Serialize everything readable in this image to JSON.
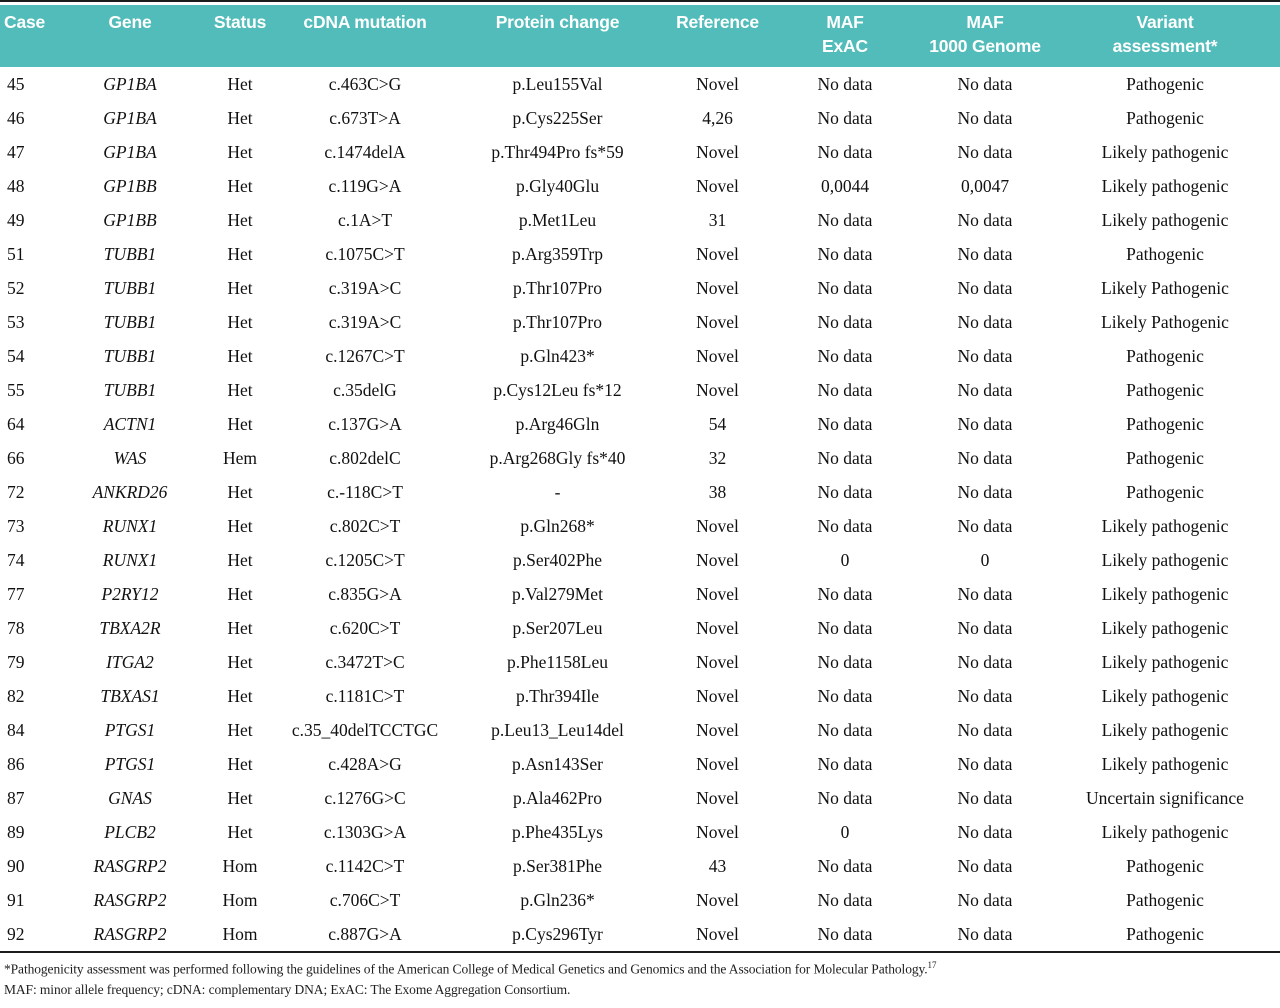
{
  "header_cols": [
    {
      "l1": "Case",
      "l2": ""
    },
    {
      "l1": "Gene",
      "l2": ""
    },
    {
      "l1": "Status",
      "l2": ""
    },
    {
      "l1": "cDNA mutation",
      "l2": ""
    },
    {
      "l1": "Protein change",
      "l2": ""
    },
    {
      "l1": "Reference",
      "l2": ""
    },
    {
      "l1": "MAF",
      "l2": "ExAC"
    },
    {
      "l1": "MAF",
      "l2": "1000 Genome"
    },
    {
      "l1": "Variant",
      "l2": "assessment*"
    }
  ],
  "rows": [
    {
      "case": "45",
      "gene": "GP1BA",
      "status": "Het",
      "cdna": "c.463C>G",
      "protein": "p.Leu155Val",
      "reference": "Novel",
      "maf_exac": "No data",
      "maf_1000g": "No data",
      "assessment": "Pathogenic"
    },
    {
      "case": "46",
      "gene": "GP1BA",
      "status": "Het",
      "cdna": "c.673T>A",
      "protein": "p.Cys225Ser",
      "reference": "4,26",
      "maf_exac": "No data",
      "maf_1000g": "No data",
      "assessment": "Pathogenic"
    },
    {
      "case": "47",
      "gene": "GP1BA",
      "status": "Het",
      "cdna": "c.1474delA",
      "protein": "p.Thr494Pro fs*59",
      "reference": "Novel",
      "maf_exac": "No data",
      "maf_1000g": "No data",
      "assessment": "Likely pathogenic"
    },
    {
      "case": "48",
      "gene": "GP1BB",
      "status": "Het",
      "cdna": "c.119G>A",
      "protein": "p.Gly40Glu",
      "reference": "Novel",
      "maf_exac": "0,0044",
      "maf_1000g": "0,0047",
      "assessment": "Likely pathogenic"
    },
    {
      "case": "49",
      "gene": "GP1BB",
      "status": "Het",
      "cdna": "c.1A>T",
      "protein": "p.Met1Leu",
      "reference": "31",
      "maf_exac": "No data",
      "maf_1000g": "No data",
      "assessment": "Likely pathogenic"
    },
    {
      "case": "51",
      "gene": "TUBB1",
      "status": "Het",
      "cdna": "c.1075C>T",
      "protein": "p.Arg359Trp",
      "reference": "Novel",
      "maf_exac": "No data",
      "maf_1000g": "No data",
      "assessment": "Pathogenic"
    },
    {
      "case": "52",
      "gene": "TUBB1",
      "status": "Het",
      "cdna": "c.319A>C",
      "protein": "p.Thr107Pro",
      "reference": "Novel",
      "maf_exac": "No data",
      "maf_1000g": "No data",
      "assessment": "Likely Pathogenic"
    },
    {
      "case": "53",
      "gene": "TUBB1",
      "status": "Het",
      "cdna": "c.319A>C",
      "protein": "p.Thr107Pro",
      "reference": "Novel",
      "maf_exac": "No data",
      "maf_1000g": "No data",
      "assessment": "Likely Pathogenic"
    },
    {
      "case": "54",
      "gene": "TUBB1",
      "status": "Het",
      "cdna": "c.1267C>T",
      "protein": "p.Gln423*",
      "reference": "Novel",
      "maf_exac": "No data",
      "maf_1000g": "No data",
      "assessment": "Pathogenic"
    },
    {
      "case": "55",
      "gene": "TUBB1",
      "status": "Het",
      "cdna": "c.35delG",
      "protein": "p.Cys12Leu fs*12",
      "reference": "Novel",
      "maf_exac": "No data",
      "maf_1000g": "No data",
      "assessment": "Pathogenic"
    },
    {
      "case": "64",
      "gene": "ACTN1",
      "status": "Het",
      "cdna": "c.137G>A",
      "protein": "p.Arg46Gln",
      "reference": "54",
      "maf_exac": "No data",
      "maf_1000g": "No data",
      "assessment": "Pathogenic"
    },
    {
      "case": "66",
      "gene": "WAS",
      "status": "Hem",
      "cdna": "c.802delC",
      "protein": "p.Arg268Gly fs*40",
      "reference": "32",
      "maf_exac": "No data",
      "maf_1000g": "No data",
      "assessment": "Pathogenic"
    },
    {
      "case": "72",
      "gene": "ANKRD26",
      "status": "Het",
      "cdna": "c.-118C>T",
      "protein": "-",
      "reference": "38",
      "maf_exac": "No data",
      "maf_1000g": "No data",
      "assessment": "Pathogenic"
    },
    {
      "case": "73",
      "gene": "RUNX1",
      "status": "Het",
      "cdna": "c.802C>T",
      "protein": "p.Gln268*",
      "reference": "Novel",
      "maf_exac": "No data",
      "maf_1000g": "No data",
      "assessment": "Likely pathogenic"
    },
    {
      "case": "74",
      "gene": "RUNX1",
      "status": "Het",
      "cdna": "c.1205C>T",
      "protein": "p.Ser402Phe",
      "reference": "Novel",
      "maf_exac": "0",
      "maf_1000g": "0",
      "assessment": "Likely pathogenic"
    },
    {
      "case": "77",
      "gene": "P2RY12",
      "status": "Het",
      "cdna": "c.835G>A",
      "protein": "p.Val279Met",
      "reference": "Novel",
      "maf_exac": "No data",
      "maf_1000g": "No data",
      "assessment": "Likely pathogenic"
    },
    {
      "case": "78",
      "gene": "TBXA2R",
      "status": "Het",
      "cdna": "c.620C>T",
      "protein": "p.Ser207Leu",
      "reference": "Novel",
      "maf_exac": "No data",
      "maf_1000g": "No data",
      "assessment": "Likely pathogenic"
    },
    {
      "case": "79",
      "gene": "ITGA2",
      "status": "Het",
      "cdna": "c.3472T>C",
      "protein": "p.Phe1158Leu",
      "reference": "Novel",
      "maf_exac": "No data",
      "maf_1000g": "No data",
      "assessment": "Likely pathogenic"
    },
    {
      "case": "82",
      "gene": "TBXAS1",
      "status": "Het",
      "cdna": "c.1181C>T",
      "protein": "p.Thr394Ile",
      "reference": "Novel",
      "maf_exac": "No data",
      "maf_1000g": "No data",
      "assessment": "Likely pathogenic"
    },
    {
      "case": "84",
      "gene": "PTGS1",
      "status": "Het",
      "cdna": "c.35_40delTCCTGC",
      "protein": "p.Leu13_Leu14del",
      "reference": "Novel",
      "maf_exac": "No data",
      "maf_1000g": "No data",
      "assessment": "Likely pathogenic"
    },
    {
      "case": "86",
      "gene": "PTGS1",
      "status": "Het",
      "cdna": "c.428A>G",
      "protein": "p.Asn143Ser",
      "reference": "Novel",
      "maf_exac": "No data",
      "maf_1000g": "No data",
      "assessment": "Likely pathogenic"
    },
    {
      "case": "87",
      "gene": "GNAS",
      "status": "Het",
      "cdna": "c.1276G>C",
      "protein": "p.Ala462Pro",
      "reference": "Novel",
      "maf_exac": "No data",
      "maf_1000g": "No data",
      "assessment": "Uncertain significance"
    },
    {
      "case": "89",
      "gene": "PLCB2",
      "status": "Het",
      "cdna": "c.1303G>A",
      "protein": "p.Phe435Lys",
      "reference": "Novel",
      "maf_exac": "0",
      "maf_1000g": "No data",
      "assessment": "Likely pathogenic"
    },
    {
      "case": "90",
      "gene": "RASGRP2",
      "status": "Hom",
      "cdna": "c.1142C>T",
      "protein": "p.Ser381Phe",
      "reference": "43",
      "maf_exac": "No data",
      "maf_1000g": "No data",
      "assessment": "Pathogenic"
    },
    {
      "case": "91",
      "gene": "RASGRP2",
      "status": "Hom",
      "cdna": "c.706C>T",
      "protein": "p.Gln236*",
      "reference": "Novel",
      "maf_exac": "No data",
      "maf_1000g": "No data",
      "assessment": "Pathogenic"
    },
    {
      "case": "92",
      "gene": "RASGRP2",
      "status": "Hom",
      "cdna": "c.887G>A",
      "protein": "p.Cys296Tyr",
      "reference": "Novel",
      "maf_exac": "No data",
      "maf_1000g": "No data",
      "assessment": "Pathogenic"
    }
  ],
  "footnotes": {
    "line1": "*Pathogenicity assessment was performed following the guidelines of the American College of Medical Genetics and Genomics and the Association for Molecular Pathology.",
    "line1_sup": "17",
    "line2": "MAF: minor allele frequency; cDNA: complementary DNA; ExAC: The Exome Aggregation Consortium."
  },
  "colors": {
    "header_bg": "#52bcba",
    "header_text": "#ffffff",
    "body_text": "#111111",
    "rule": "#1b1b1b"
  }
}
